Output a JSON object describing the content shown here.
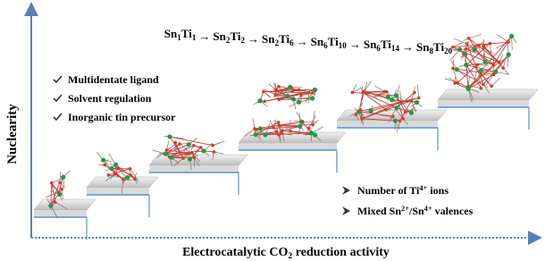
{
  "sequence": {
    "formulas": [
      [
        {
          "t": "Sn"
        },
        {
          "sub": "1"
        },
        {
          "t": "Ti"
        },
        {
          "sub": "1"
        }
      ],
      [
        {
          "t": "Sn"
        },
        {
          "sub": "2"
        },
        {
          "t": "Ti"
        },
        {
          "sub": "2"
        }
      ],
      [
        {
          "t": "Sn"
        },
        {
          "sub": "2"
        },
        {
          "t": "Ti"
        },
        {
          "sub": "6"
        }
      ],
      [
        {
          "t": "Sn"
        },
        {
          "sub": "6"
        },
        {
          "t": "Ti"
        },
        {
          "sub": "10"
        }
      ],
      [
        {
          "t": "Sn"
        },
        {
          "sub": "6"
        },
        {
          "t": "Ti"
        },
        {
          "sub": "14"
        }
      ],
      [
        {
          "t": "Sn"
        },
        {
          "sub": "8"
        },
        {
          "t": "Ti"
        },
        {
          "sub": "20"
        }
      ]
    ],
    "arrow": "→"
  },
  "strategies": [
    "Multidentate ligand",
    "Solvent regulation",
    "Inorganic tin precursor"
  ],
  "factors": [
    [
      {
        "t": "Number of Ti"
      },
      {
        "sup": "4+"
      },
      {
        "t": " ions"
      }
    ],
    [
      {
        "t": "Mixed Sn"
      },
      {
        "sup": "2+"
      },
      {
        "t": "/Sn"
      },
      {
        "sup": "4+"
      },
      {
        "t": " valences"
      }
    ]
  ],
  "y_axis_label": "Nuclearity",
  "x_axis_label": [
    {
      "t": "Electrocatalytic CO"
    },
    {
      "sub": "2"
    },
    {
      "t": " reduction activity"
    }
  ]
}
